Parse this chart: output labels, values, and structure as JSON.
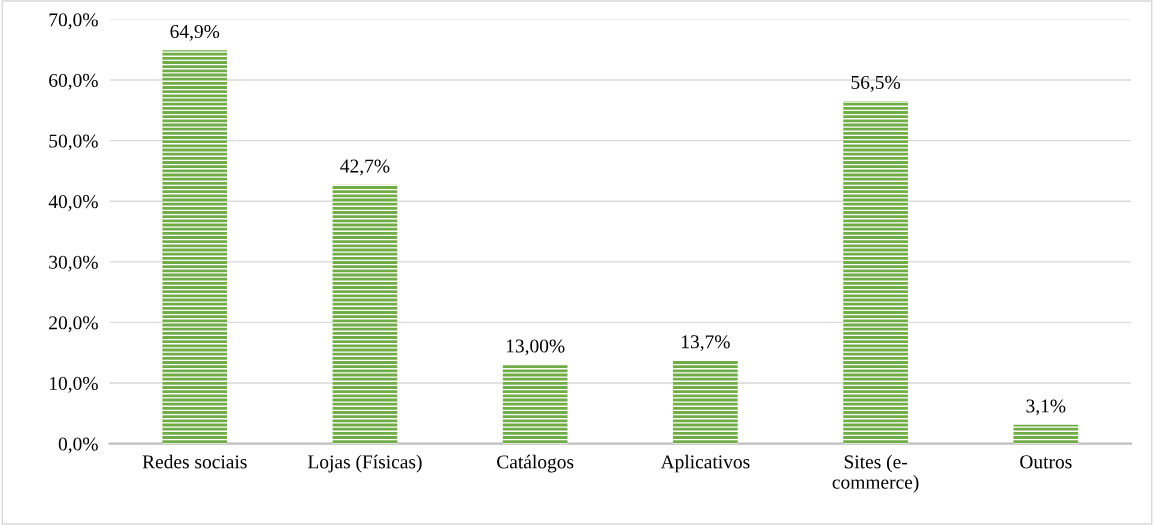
{
  "chart_data": {
    "type": "bar",
    "categories": [
      "Redes sociais",
      "Lojas (Físicas)",
      "Catálogos",
      "Aplicativos",
      "Sites (e-\ncommerce)",
      "Outros"
    ],
    "values": [
      64.9,
      42.7,
      13.0,
      13.7,
      56.5,
      3.1
    ],
    "value_labels": [
      "64,9%",
      "42,7%",
      "13,00%",
      "13,7%",
      "56,5%",
      "3,1%"
    ],
    "color": "#70ad47",
    "ylim": [
      0,
      70
    ],
    "yticks": [
      {
        "value": 0,
        "label": "0,0%"
      },
      {
        "value": 10,
        "label": "10,0%"
      },
      {
        "value": 20,
        "label": "20,0%"
      },
      {
        "value": 30,
        "label": "30,0%"
      },
      {
        "value": 40,
        "label": "40,0%"
      },
      {
        "value": 50,
        "label": "50,0%"
      },
      {
        "value": 60,
        "label": "60,0%"
      },
      {
        "value": 70,
        "label": "70,0%"
      }
    ],
    "grid": "y",
    "legend": false
  }
}
